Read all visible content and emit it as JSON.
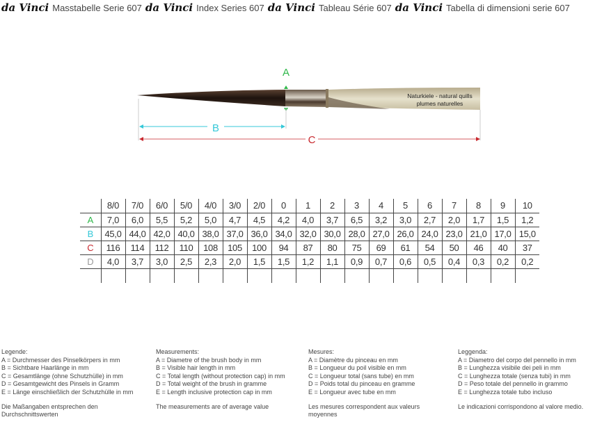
{
  "header": {
    "logo": "da Vinci",
    "titles": [
      "Masstabelle Serie 607",
      "Index Series 607",
      "Tableau Série 607",
      "Tabella di dimensioni serie 607"
    ]
  },
  "diagram": {
    "label_a": "A",
    "label_b": "B",
    "label_c": "C",
    "quill_line1": "Naturkiele - natural quills",
    "quill_line2": "plumes naturelles",
    "colors": {
      "a": "#2fb84a",
      "b": "#35c8d8",
      "c": "#c8282e",
      "d": "#999999"
    }
  },
  "table": {
    "sizes": [
      "8/0",
      "7/0",
      "6/0",
      "5/0",
      "4/0",
      "3/0",
      "2/0",
      "0",
      "1",
      "2",
      "3",
      "4",
      "5",
      "6",
      "7",
      "8",
      "9",
      "10"
    ],
    "rows": [
      {
        "label": "A",
        "values": [
          "7,0",
          "6,0",
          "5,5",
          "5,2",
          "5,0",
          "4,7",
          "4,5",
          "4,2",
          "4,0",
          "3,7",
          "6,5",
          "3,2",
          "3,0",
          "2,7",
          "2,0",
          "1,7",
          "1,5",
          "1,2"
        ]
      },
      {
        "label": "B",
        "values": [
          "45,0",
          "44,0",
          "42,0",
          "40,0",
          "38,0",
          "37,0",
          "36,0",
          "34,0",
          "32,0",
          "30,0",
          "28,0",
          "27,0",
          "26,0",
          "24,0",
          "23,0",
          "21,0",
          "17,0",
          "15,0"
        ]
      },
      {
        "label": "C",
        "values": [
          "116",
          "114",
          "112",
          "110",
          "108",
          "105",
          "100",
          "94",
          "87",
          "80",
          "75",
          "69",
          "61",
          "54",
          "50",
          "46",
          "40",
          "37"
        ]
      },
      {
        "label": "D",
        "values": [
          "4,0",
          "3,7",
          "3,0",
          "2,5",
          "2,3",
          "2,0",
          "1,5",
          "1,5",
          "1,2",
          "1,1",
          "0,9",
          "0,7",
          "0,6",
          "0,5",
          "0,4",
          "0,3",
          "0,2",
          "0,2"
        ]
      }
    ]
  },
  "legend": [
    {
      "title": "Legende:",
      "lines": [
        "A = Durchmesser des Pinselkörpers in mm",
        "B = Sichtbare Haarlänge in mm",
        "C = Gesamtlänge (ohne Schutzhülle) in mm",
        "D = Gesamtgewicht des Pinsels in Gramm",
        "E = Länge einschließlich der Schutzhülle in mm"
      ],
      "note": "Die Maßangaben entsprechen den Durchschnittswerten"
    },
    {
      "title": "Measurements:",
      "lines": [
        "A = Diametre of the brush body in mm",
        "B = Visible hair length in mm",
        "C = Total length (without protection cap) in mm",
        "D = Total weight of the brush in gramme",
        "E  = Length inclusive protection cap in mm"
      ],
      "note": "The measurements are of average value"
    },
    {
      "title": "Mesures:",
      "lines": [
        "A = Diamètre du pinceau en mm",
        "B = Longueur du poil visible en mm",
        "C = Longueur total (sans tube) en mm",
        "D = Poids total du pinceau en gramme",
        "E = Longueur avec tube en mm"
      ],
      "note": "Les mesures  correspondent aux valeurs moyennes"
    },
    {
      "title": "Leggenda:",
      "lines": [
        "A = Diametro del corpo del pennello in mm",
        "B = Lunghezza visibile dei peli in mm",
        "C = Lunghezza totale (senza tubi) in mm",
        "D = Peso totale del pennello in grammo",
        "E = Lunghezza totale tubo incluso"
      ],
      "note": "Le indicazioni corrispondono al valore medio."
    }
  ]
}
